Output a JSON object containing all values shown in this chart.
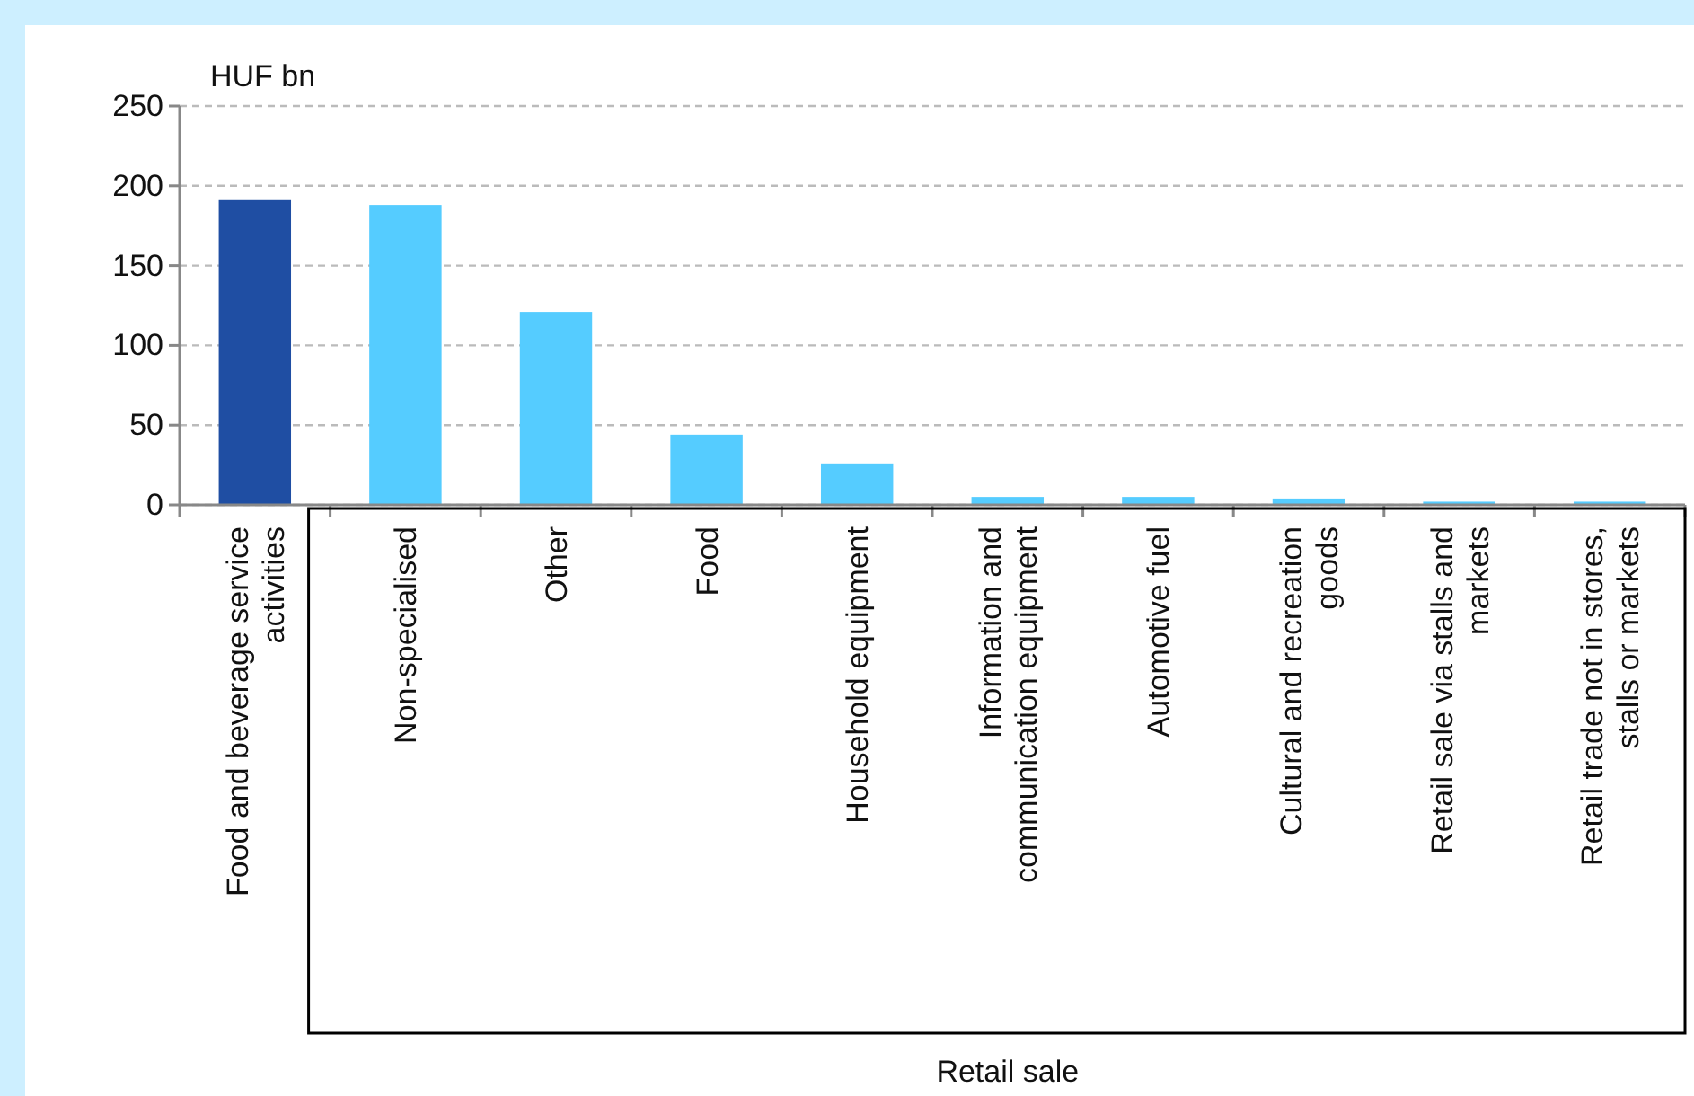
{
  "chart_data": {
    "type": "bar",
    "ylabel": "HUF bn",
    "annotations": [
      "Retail sale"
    ],
    "categories": [
      "Food and beverage service activities",
      "Non-specialised",
      "Other",
      "Food",
      "Household equipment",
      "Information and communication equipment",
      "Automotive fuel",
      "Cultural and recreation goods",
      "Retail sale via stalls and markets",
      "Retail trade not in stores, stalls or markets"
    ],
    "values": [
      191,
      188,
      121,
      44,
      26,
      5,
      5,
      4,
      2,
      2
    ],
    "colors": [
      "#1f4ea3",
      "#55ccff",
      "#55ccff",
      "#55ccff",
      "#55ccff",
      "#55ccff",
      "#55ccff",
      "#55ccff",
      "#55ccff",
      "#55ccff"
    ],
    "ylim": [
      0,
      250
    ],
    "yticks": [
      0,
      50,
      100,
      150,
      200,
      250
    ],
    "grid": "y"
  }
}
